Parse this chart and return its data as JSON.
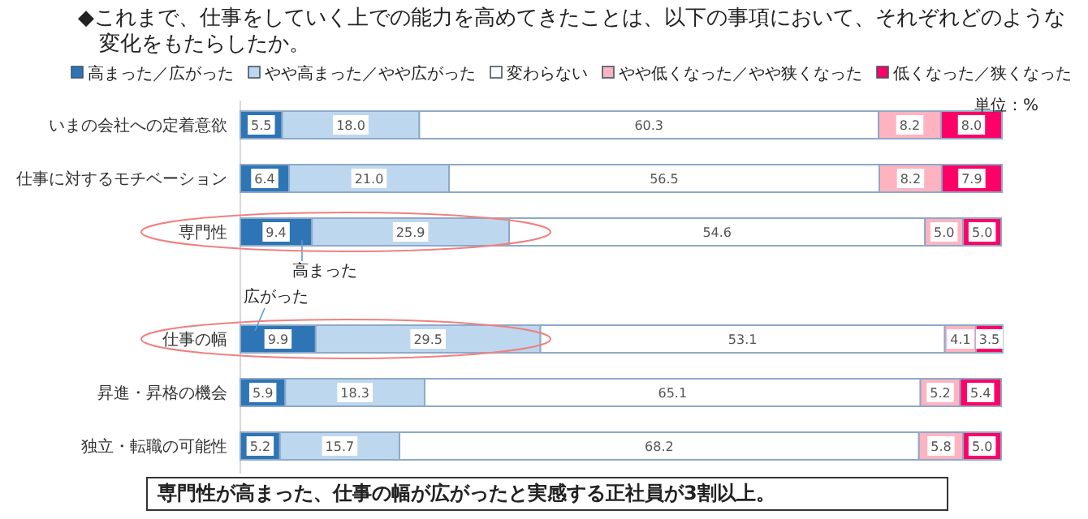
{
  "chart_data": {
    "type": "bar",
    "orientation": "horizontal",
    "stacked": true,
    "legend": "top",
    "title": "◆これまで、仕事をしていく上での能力を高めてきたことは、以下の事項において、それぞれどのような変化をもたらしたか。",
    "categories": [
      "いまの会社への定着意欲",
      "仕事に対するモチベーション",
      "専門性",
      null,
      "仕事の幅",
      "昇進・昇格の機会",
      "独立・転職の可能性"
    ],
    "series": [
      {
        "name": "高まった／広がった",
        "color": "#2e75b6",
        "values": [
          5.5,
          6.4,
          9.4,
          null,
          9.9,
          5.9,
          5.2
        ],
        "value_labels": [
          "5.5",
          "6.4",
          "9.4",
          null,
          "9.9",
          "5.9",
          "5.2"
        ]
      },
      {
        "name": "やや高まった／やや広がった",
        "color": "#bdd7ee",
        "values": [
          18.0,
          21.0,
          25.9,
          null,
          29.5,
          18.3,
          15.7
        ],
        "value_labels": [
          "18.0",
          "21.0",
          "25.9",
          null,
          "29.5",
          "18.3",
          "15.7"
        ]
      },
      {
        "name": "変わらない",
        "color": "#ffffff",
        "values": [
          60.3,
          56.5,
          54.6,
          null,
          53.1,
          65.1,
          68.2
        ],
        "value_labels": [
          "60.3",
          "56.5",
          "54.6",
          null,
          "53.1",
          "65.1",
          "68.2"
        ]
      },
      {
        "name": "やや低くなった／やや狭くなった",
        "color": "#ffb3c1",
        "values": [
          8.2,
          8.2,
          5.0,
          null,
          4.1,
          5.2,
          5.8
        ],
        "value_labels": [
          "8.2",
          "8.2",
          "5.0",
          null,
          "4.1",
          "5.2",
          "5.8"
        ]
      },
      {
        "name": "低くなった／狭くなった",
        "color": "#ff0066",
        "values": [
          8.0,
          7.9,
          5.0,
          null,
          3.5,
          5.4,
          5.0
        ],
        "value_labels": [
          "8.0",
          "7.9",
          "5.0",
          null,
          "3.5",
          "5.4",
          "5.0"
        ]
      }
    ],
    "annotations": [
      "単位：%",
      "高まった",
      "広がった",
      "専門性が高まった、仕事の幅が広がったと実感する正社員が3割以上。"
    ]
  }
}
